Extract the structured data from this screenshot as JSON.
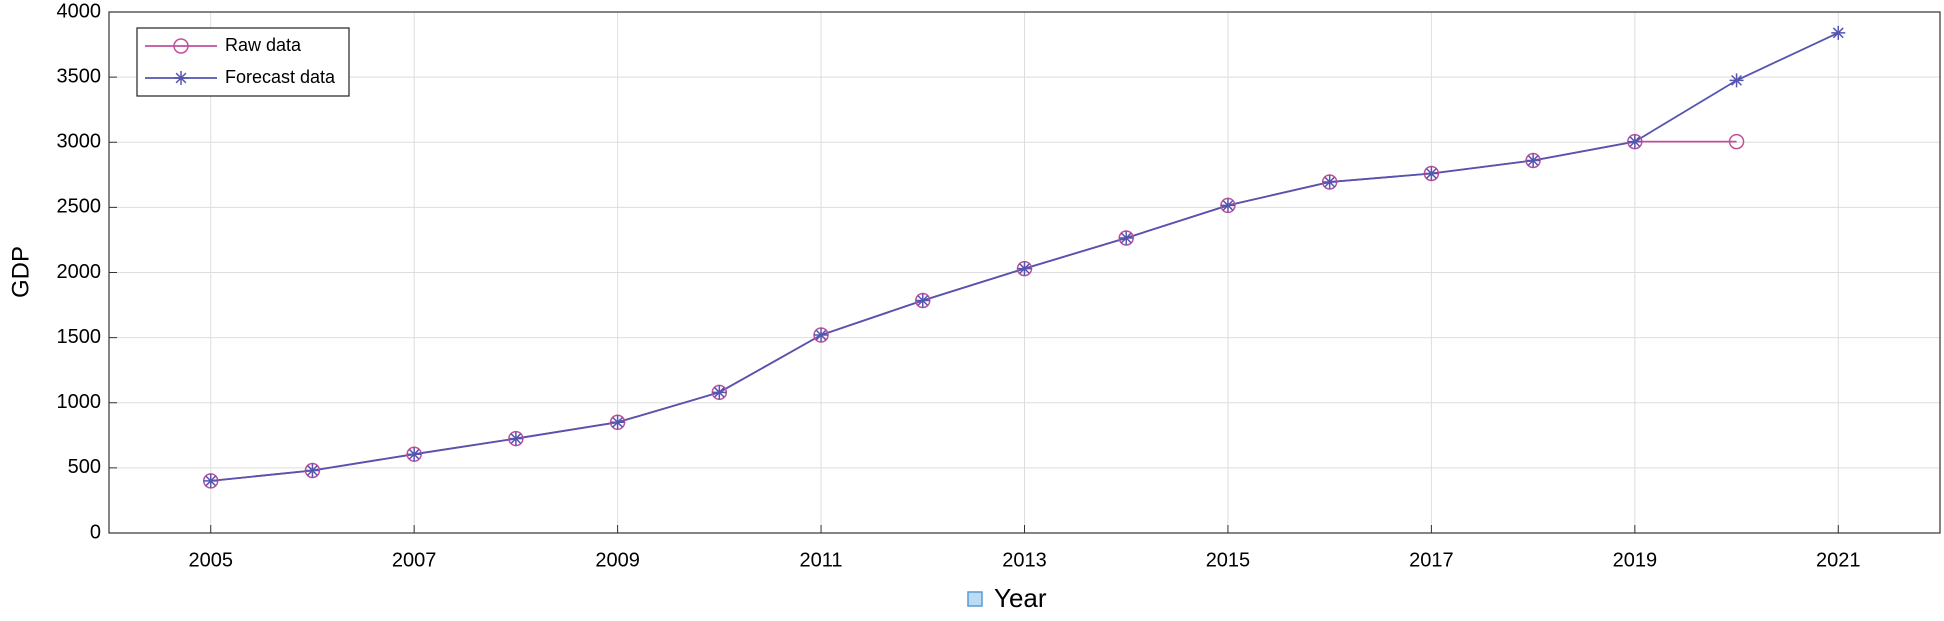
{
  "chart_data": {
    "type": "line",
    "x_label": "Year",
    "y_label": "GDP",
    "x": [
      2005,
      2006,
      2007,
      2008,
      2009,
      2010,
      2011,
      2012,
      2013,
      2014,
      2015,
      2016,
      2017,
      2018,
      2019,
      2020,
      2021
    ],
    "series": [
      {
        "name": "Raw data",
        "color": "#c0509a",
        "marker": "circle",
        "values": [
          400,
          480,
          605,
          725,
          850,
          1080,
          1520,
          1785,
          2030,
          2265,
          2515,
          2695,
          2760,
          2860,
          3005,
          3005,
          null
        ]
      },
      {
        "name": "Forecast data",
        "color": "#5555b0",
        "marker": "asterisk",
        "values": [
          400,
          480,
          605,
          725,
          850,
          1080,
          1520,
          1785,
          2030,
          2265,
          2515,
          2695,
          2760,
          2860,
          3005,
          3475,
          3840
        ]
      }
    ],
    "xlim": [
      2004,
      2022
    ],
    "xticks": [
      2005,
      2007,
      2009,
      2011,
      2013,
      2015,
      2017,
      2019,
      2021
    ],
    "ylim": [
      0,
      4000
    ],
    "yticks": [
      0,
      500,
      1000,
      1500,
      2000,
      2500,
      3000,
      3500,
      4000
    ],
    "grid": true,
    "legend": "top-left"
  }
}
